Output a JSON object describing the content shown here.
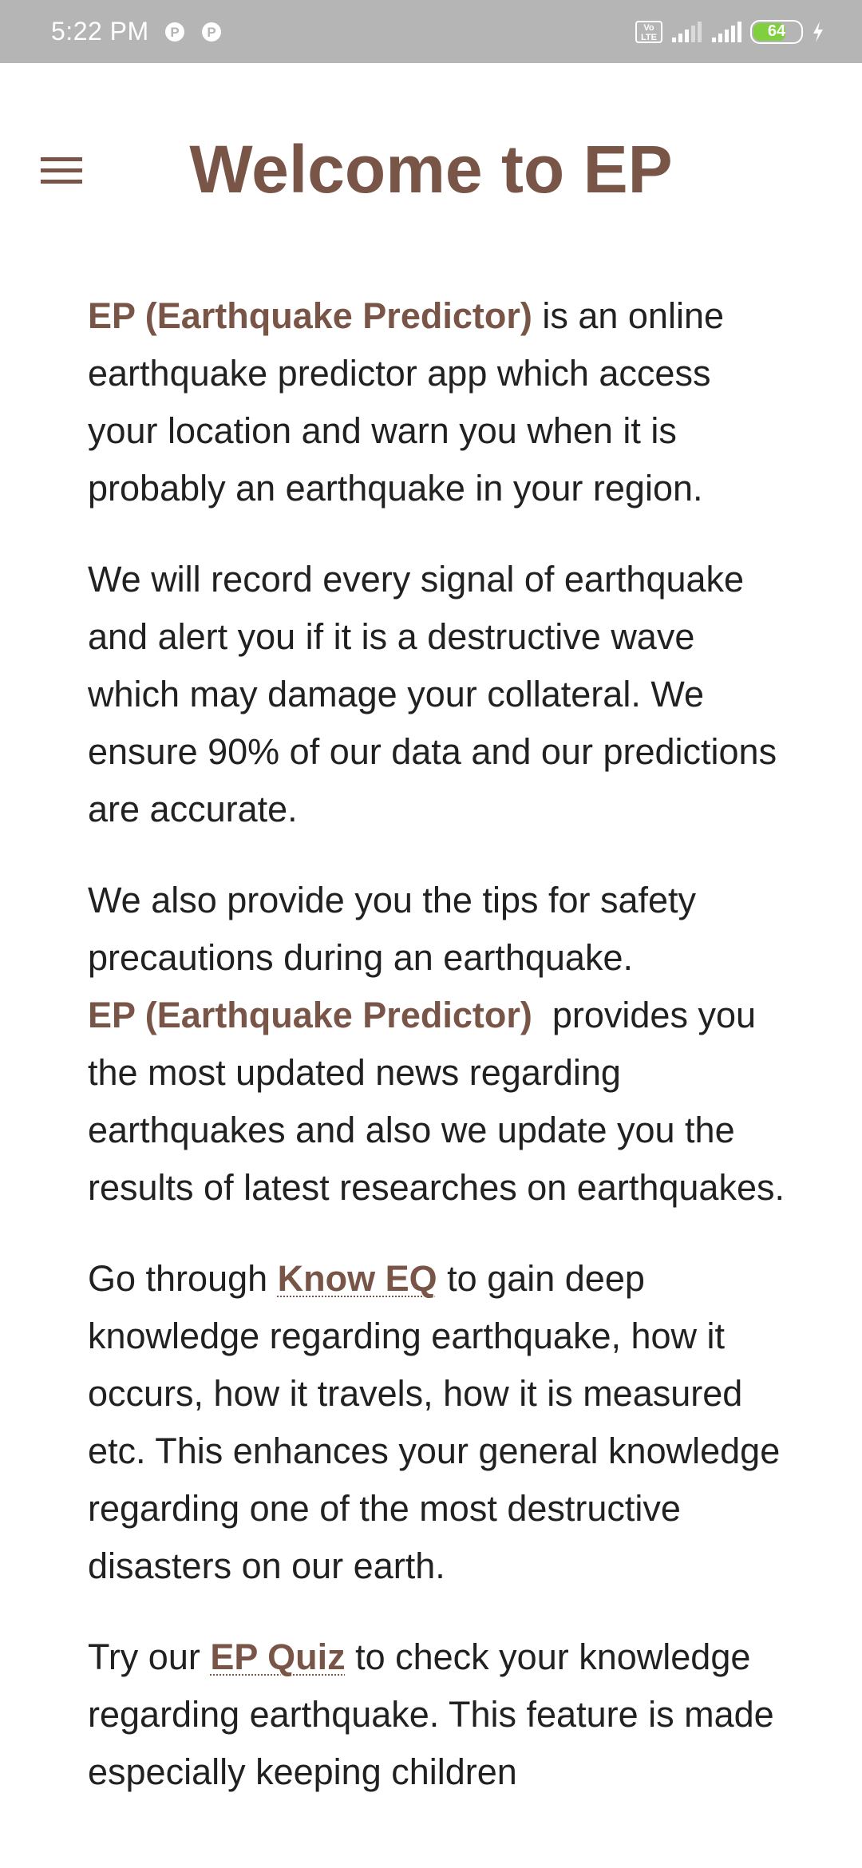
{
  "status_bar": {
    "time": "5:22 PM",
    "battery_level": "64",
    "volte_label": "Vo\nLTE"
  },
  "header": {
    "title": "Welcome to EP"
  },
  "content": {
    "p1": {
      "brand": "EP (Earthquake Predictor)",
      "text": " is an online earthquake predictor app which access your location and warn you when it is probably an earthquake in your region."
    },
    "p2": {
      "text": "We will record every signal of earthquake and alert you if it is a destructive wave which may damage your collateral. We ensure 90% of our data and our predictions are accurate."
    },
    "p3": {
      "text_before": "We also provide you the tips for safety precautions during an earthquake.",
      "brand": "EP (Earthquake Predictor)",
      "text_after": "  provides you the most updated news regarding earthquakes and also we update you the results of latest researches on earthquakes."
    },
    "p4": {
      "text_before": "Go through ",
      "link": "Know EQ",
      "text_after": " to gain deep knowledge regarding earthquake, how it occurs, how it travels, how it is measured etc. This enhances your general knowledge regarding one of the most destructive disasters on our earth."
    },
    "p5": {
      "text_before": "Try our ",
      "link": "EP Quiz",
      "text_after": " to check your knowledge regarding earthquake. This feature is made especially keeping children"
    }
  },
  "colors": {
    "accent": "#795548",
    "status_bar": "#b5b5b5",
    "text": "#212121",
    "battery_fill": "#7fcf3f"
  },
  "icons": {
    "menu": "hamburger-menu-icon",
    "notification_p": "parking-p-icon",
    "signal": "cell-signal-icon",
    "battery": "battery-icon",
    "charging": "charging-bolt-icon"
  }
}
